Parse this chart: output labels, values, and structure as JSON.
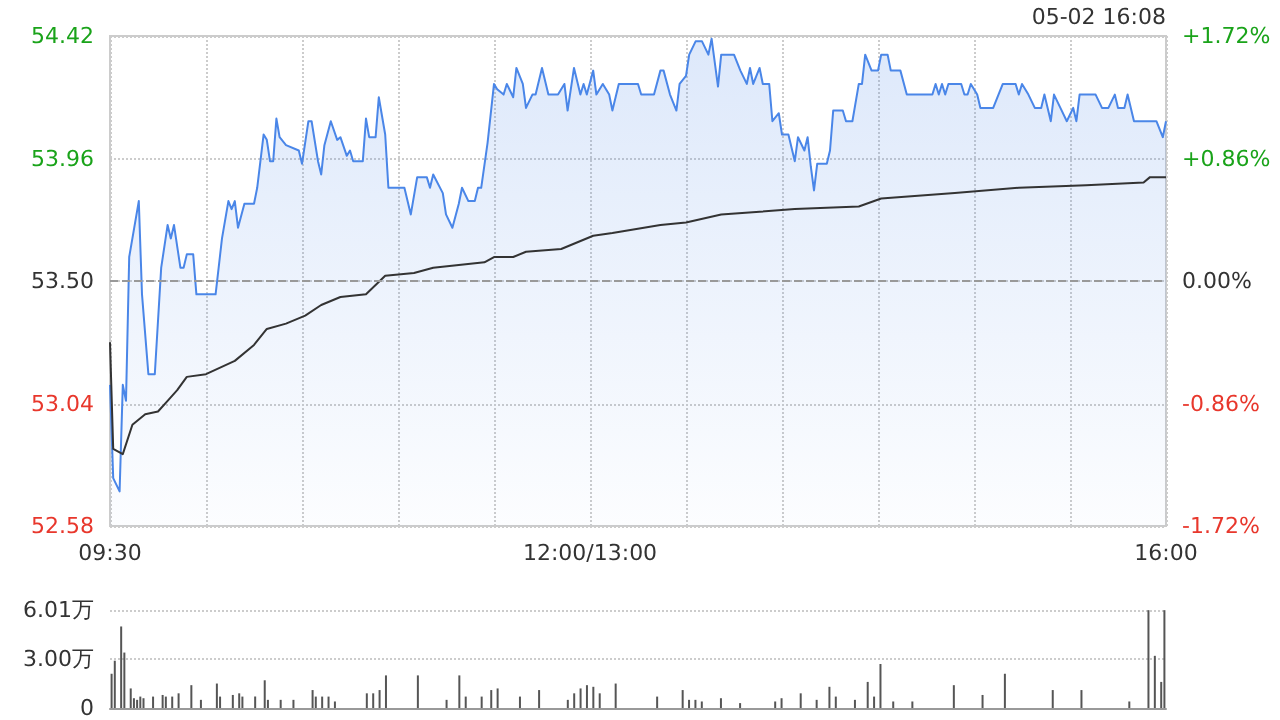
{
  "chart_data": [
    {
      "type": "area",
      "annotations": [
        "05-02 16:08"
      ],
      "categories": [
        "09:30",
        null,
        null,
        null,
        null,
        null,
        null,
        null,
        null,
        null,
        null,
        null,
        null,
        null,
        null,
        null,
        null,
        null,
        null,
        null,
        null,
        null,
        null,
        null,
        null,
        null,
        null,
        null,
        null,
        null,
        null,
        null,
        null,
        null,
        null,
        null,
        null,
        null,
        null,
        null,
        null,
        null,
        null,
        null,
        null,
        null,
        null,
        null,
        null,
        null,
        null,
        null,
        null,
        null,
        null,
        null,
        null,
        null,
        null,
        null,
        null,
        null,
        null,
        null,
        null,
        null,
        null,
        null,
        null,
        null,
        null,
        null,
        null,
        null,
        null,
        null,
        null,
        null,
        null,
        null,
        null,
        null,
        null,
        null,
        null,
        null,
        null,
        null,
        null,
        null,
        null,
        null,
        null,
        null,
        null,
        null,
        null,
        null,
        null,
        null,
        null,
        null,
        null,
        null,
        null,
        null,
        null,
        null,
        null,
        null,
        null,
        null,
        null,
        null,
        null,
        null,
        null,
        null,
        null,
        null,
        null,
        null,
        null,
        null,
        null,
        null,
        null,
        null,
        null,
        null,
        null,
        null,
        null,
        null,
        null,
        null,
        null,
        null,
        null,
        null,
        null,
        null,
        null,
        null,
        null,
        null,
        null,
        null,
        null,
        null,
        "12:00/13:00",
        null,
        null,
        null,
        null,
        null,
        null,
        null,
        null,
        null,
        null,
        null,
        null,
        null,
        null,
        null,
        null,
        null,
        null,
        null,
        null,
        null,
        null,
        null,
        null,
        null,
        null,
        null,
        null,
        null,
        null,
        null,
        null,
        null,
        null,
        null,
        null,
        null,
        null,
        null,
        null,
        null,
        null,
        null,
        null,
        null,
        null,
        null,
        null,
        null,
        null,
        null,
        null,
        null,
        null,
        null,
        null,
        null,
        null,
        null,
        null,
        null,
        null,
        null,
        null,
        null,
        null,
        null,
        null,
        null,
        null,
        null,
        null,
        null,
        null,
        null,
        null,
        null,
        null,
        null,
        null,
        null,
        null,
        null,
        null,
        null,
        null,
        null,
        null,
        null,
        null,
        null,
        null,
        null,
        null,
        null,
        null,
        null,
        null,
        null,
        null,
        null,
        null,
        null,
        null,
        null,
        null,
        null,
        null,
        null,
        null,
        null,
        null,
        null,
        null,
        null,
        null,
        null,
        null,
        null,
        null,
        null,
        null,
        null,
        null,
        null,
        null,
        null,
        null,
        null,
        null,
        null,
        null,
        null,
        null,
        null,
        null,
        null,
        null,
        null,
        null,
        null,
        null,
        null,
        null,
        null,
        null,
        null,
        null,
        null,
        null,
        null,
        null,
        null,
        null,
        null,
        null,
        null,
        null,
        null,
        null,
        null,
        null,
        null,
        null,
        null,
        null,
        null,
        null,
        null,
        null,
        null,
        null,
        null,
        null,
        null,
        null,
        null,
        null,
        null,
        "16:00"
      ],
      "ylim": [
        52.58,
        54.42
      ],
      "yticks": [
        52.58,
        53.04,
        {
          "value": 53.5,
          "label": "53.50"
        },
        53.96,
        54.42
      ],
      "y2lim": [
        -1.72,
        1.72
      ],
      "y2ticks": [
        {
          "value": -1.72,
          "label": "-1.72%"
        },
        {
          "value": -0.86,
          "label": "-0.86%"
        },
        {
          "value": 0,
          "label": "0.00%"
        },
        {
          "value": 0.86,
          "label": "+0.86%"
        },
        {
          "value": 1.72,
          "label": "+1.72%"
        }
      ],
      "grid": true,
      "marker": "none",
      "line_style": "solid",
      "ref_lines": [
        {
          "axis": "y",
          "value": 53.5,
          "color": "#999999",
          "line_style": "dashed"
        }
      ],
      "series": [
        {
          "color": "#4a86e8",
          "values": [
            53.11,
            52.76,
            null,
            52.71,
            53.11,
            53.05,
            53.59,
            null,
            null,
            53.8,
            53.45,
            null,
            53.15,
            null,
            53.15,
            null,
            53.55,
            null,
            53.71,
            53.66,
            53.71,
            null,
            53.55,
            53.55,
            53.6,
            null,
            53.6,
            53.45,
            null,
            null,
            null,
            null,
            null,
            53.45,
            null,
            53.66,
            null,
            53.8,
            53.77,
            53.8,
            53.7,
            null,
            53.79,
            null,
            null,
            53.79,
            53.85,
            null,
            54.05,
            54.03,
            53.95,
            53.95,
            54.11,
            54.04,
            null,
            54.01,
            null,
            null,
            null,
            53.99,
            53.94,
            null,
            54.1,
            54.1,
            null,
            53.95,
            53.9,
            54.01,
            null,
            54.1,
            null,
            54.03,
            54.04,
            null,
            53.97,
            53.99,
            53.95,
            null,
            null,
            53.95,
            54.11,
            54.04,
            null,
            54.04,
            54.19,
            null,
            54.05,
            53.85,
            null,
            null,
            null,
            null,
            53.85,
            null,
            53.75,
            null,
            53.89,
            null,
            null,
            53.89,
            53.85,
            53.9,
            null,
            null,
            53.83,
            53.75,
            null,
            53.7,
            null,
            53.79,
            53.85,
            null,
            53.8,
            null,
            53.8,
            53.85,
            53.85,
            null,
            54.02,
            null,
            54.24,
            54.22,
            null,
            54.2,
            54.24,
            null,
            54.19,
            54.3,
            null,
            54.24,
            54.15,
            null,
            54.2,
            54.2,
            null,
            54.3,
            null,
            54.2,
            null,
            null,
            54.2,
            null,
            54.24,
            54.14,
            null,
            54.3,
            null,
            54.2,
            54.24,
            54.2,
            null,
            54.29,
            54.2,
            null,
            54.24,
            null,
            54.2,
            54.14,
            null,
            54.24,
            null,
            54.24,
            null,
            null,
            null,
            54.24,
            54.2,
            null,
            null,
            null,
            54.2,
            null,
            54.29,
            54.29,
            null,
            54.2,
            null,
            54.14,
            54.24,
            null,
            54.27,
            54.35,
            null,
            54.4,
            null,
            54.4,
            null,
            54.35,
            54.41,
            null,
            54.23,
            54.35,
            null,
            null,
            null,
            54.35,
            null,
            54.29,
            null,
            54.24,
            54.3,
            54.24,
            null,
            54.3,
            54.24,
            null,
            54.24,
            54.1,
            null,
            54.13,
            54.05,
            null,
            54.05,
            null,
            53.95,
            54.04,
            null,
            53.99,
            54.04,
            53.93,
            53.84,
            53.94,
            null,
            null,
            53.94,
            53.99,
            54.14,
            null,
            null,
            54.14,
            54.1,
            null,
            54.1,
            null,
            54.24,
            54.24,
            54.35,
            null,
            54.29,
            null,
            54.29,
            54.35,
            null,
            54.35,
            54.29,
            null,
            null,
            54.29,
            null,
            54.2,
            null,
            null,
            null,
            null,
            null,
            null,
            null,
            54.2,
            54.24,
            54.2,
            54.24,
            54.2,
            54.24,
            null,
            null,
            null,
            54.24,
            54.2,
            54.2,
            54.24,
            null,
            54.2,
            54.15,
            null,
            null,
            null,
            54.15,
            null,
            null,
            54.24,
            null,
            null,
            null,
            54.24,
            54.2,
            54.24,
            null,
            54.2,
            null,
            54.15,
            null,
            54.15,
            54.2,
            null,
            54.1,
            54.2,
            null,
            54.15,
            null,
            54.1,
            null,
            54.15,
            54.1,
            54.2,
            null,
            null,
            null,
            null,
            54.2,
            null,
            54.15,
            null,
            54.15,
            null,
            54.2,
            54.15,
            null,
            54.15,
            54.2,
            null,
            54.1,
            null,
            null,
            null,
            null,
            null,
            null,
            54.1,
            null,
            54.04,
            54.1
          ]
        },
        {
          "type": "line",
          "color": "#333333",
          "values": [
            53.27,
            52.87,
            null,
            null,
            52.85,
            null,
            null,
            52.96,
            null,
            null,
            null,
            53.0,
            null,
            null,
            null,
            53.01,
            null,
            null,
            53.05,
            null,
            null,
            53.09,
            null,
            null,
            53.14,
            null,
            null,
            null,
            null,
            null,
            53.15,
            null,
            null,
            null,
            null,
            null,
            null,
            null,
            null,
            53.2,
            null,
            null,
            null,
            null,
            null,
            53.26,
            null,
            null,
            null,
            53.32,
            null,
            null,
            null,
            null,
            null,
            53.34,
            null,
            null,
            null,
            null,
            null,
            53.37,
            null,
            null,
            null,
            null,
            53.41,
            null,
            null,
            null,
            null,
            null,
            53.44,
            null,
            null,
            null,
            null,
            null,
            null,
            null,
            53.45,
            null,
            null,
            null,
            null,
            null,
            53.52,
            null,
            null,
            null,
            null,
            null,
            null,
            null,
            null,
            53.53,
            null,
            null,
            null,
            null,
            null,
            53.55,
            null,
            null,
            null,
            null,
            null,
            null,
            null,
            53.56,
            null,
            null,
            null,
            null,
            null,
            null,
            null,
            53.57,
            null,
            null,
            53.59,
            null,
            null,
            null,
            null,
            null,
            53.59,
            null,
            null,
            null,
            53.61,
            null,
            null,
            null,
            null,
            null,
            null,
            null,
            null,
            null,
            null,
            53.62,
            null,
            null,
            null,
            null,
            null,
            null,
            null,
            null,
            null,
            53.67,
            null,
            null,
            null,
            null,
            null,
            53.68,
            null,
            null,
            null,
            null,
            null,
            null,
            null,
            null,
            null,
            null,
            null,
            null,
            null,
            null,
            53.71,
            null,
            null,
            null,
            null,
            null,
            null,
            null,
            53.72,
            null,
            null,
            null,
            null,
            null,
            null,
            null,
            null,
            null,
            null,
            53.75,
            null,
            null,
            null,
            null,
            null,
            null,
            null,
            null,
            null,
            null,
            null,
            53.76,
            null,
            null,
            null,
            null,
            null,
            null,
            null,
            null,
            null,
            null,
            53.77,
            null,
            null,
            null,
            null,
            null,
            null,
            null,
            null,
            null,
            null,
            null,
            null,
            null,
            null,
            null,
            null,
            null,
            null,
            null,
            53.78,
            null,
            null,
            null,
            null,
            null,
            null,
            53.81,
            null,
            null,
            null,
            null,
            null,
            null,
            null,
            null,
            null,
            null,
            null,
            null,
            null,
            null,
            null,
            null,
            null,
            null,
            null,
            null,
            null,
            null,
            53.83,
            null,
            null,
            null,
            null,
            null,
            null,
            null,
            null,
            null,
            null,
            null,
            null,
            null,
            null,
            null,
            null,
            null,
            null,
            null,
            53.85,
            null,
            null,
            null,
            null,
            null,
            null,
            null,
            null,
            null,
            null,
            null,
            null,
            null,
            null,
            null,
            null,
            null,
            null,
            null,
            null,
            53.86,
            null,
            null,
            null,
            null,
            null,
            null,
            null,
            null,
            null,
            null,
            null,
            null,
            null,
            null,
            null,
            null,
            null,
            53.87,
            null,
            53.89,
            null,
            null,
            null,
            null,
            53.89
          ]
        }
      ]
    },
    {
      "type": "bar",
      "color": "#555555",
      "tick_labels": "y",
      "grid": "y",
      "categories": [
        null,
        null,
        null,
        null,
        null,
        null,
        null,
        null,
        null,
        null,
        null,
        null,
        null,
        null,
        null,
        null,
        null,
        null,
        null,
        null,
        null,
        null,
        null,
        null,
        null,
        null,
        null,
        null,
        null,
        null,
        null,
        null,
        null,
        null,
        null,
        null,
        null,
        null,
        null,
        null,
        null,
        null,
        null,
        null,
        null,
        null,
        null,
        null,
        null,
        null,
        null,
        null,
        null,
        null,
        null,
        null,
        null,
        null,
        null,
        null,
        null,
        null,
        null,
        null,
        null,
        null,
        null,
        null,
        null,
        null,
        null,
        null,
        null,
        null,
        null,
        null,
        null,
        null,
        null,
        null,
        null,
        null,
        null,
        null,
        null,
        null,
        null,
        null,
        null,
        null,
        null,
        null,
        null,
        null,
        null,
        null,
        null,
        null,
        null,
        null,
        null,
        null,
        null,
        null,
        null,
        null,
        null,
        null,
        null,
        null,
        null,
        null,
        null,
        null,
        null,
        null,
        null,
        null,
        null,
        null,
        null,
        null,
        null,
        null,
        null,
        null,
        null,
        null,
        null,
        null,
        null,
        null,
        null,
        null,
        null,
        null,
        null,
        null,
        null,
        null,
        null,
        null,
        null,
        null,
        null,
        null,
        null,
        null,
        null,
        null,
        null,
        null,
        null,
        null,
        null,
        null,
        null,
        null,
        null,
        null,
        null,
        null,
        null,
        null,
        null,
        null,
        null,
        null,
        null,
        null,
        null,
        null,
        null,
        null,
        null,
        null,
        null,
        null,
        null,
        null,
        null,
        null,
        null,
        null,
        null,
        null,
        null,
        null,
        null,
        null,
        null,
        null,
        null,
        null,
        null,
        null,
        null,
        null,
        null,
        null,
        null,
        null,
        null,
        null,
        null,
        null,
        null,
        null,
        null,
        null,
        null,
        null,
        null,
        null,
        null,
        null,
        null,
        null,
        null,
        null,
        null,
        null,
        null,
        null,
        null,
        null,
        null,
        null,
        null,
        null,
        null,
        null,
        null,
        null,
        null,
        null,
        null,
        null,
        null,
        null,
        null,
        null,
        null,
        null,
        null,
        null,
        null,
        null,
        null,
        null,
        null,
        null,
        null,
        null,
        null,
        null,
        null,
        null,
        null,
        null,
        null,
        null,
        null,
        null,
        null,
        null,
        null,
        null,
        null,
        null,
        null,
        null,
        null,
        null,
        null,
        null,
        null,
        null,
        null,
        null,
        null,
        null,
        null,
        null,
        null,
        null,
        null,
        null,
        null,
        null,
        null,
        null,
        null,
        null,
        null,
        null,
        null,
        null,
        null,
        null,
        null,
        null,
        null,
        null,
        null,
        null,
        null,
        null,
        null,
        null,
        null,
        null,
        null,
        null,
        null,
        null,
        null,
        null,
        null,
        null,
        null,
        null,
        null,
        null,
        null,
        null,
        null,
        null,
        null,
        null,
        null
      ],
      "ylim": [
        0,
        6.01
      ],
      "yticks": [
        0,
        {
          "value": 3,
          "label": "3.00万"
        },
        {
          "value": 6.01,
          "label": "6.01万"
        }
      ],
      "values": [
        2.1,
        2.9,
        null,
        5.0,
        3.4,
        null,
        1.2,
        0.6,
        0.5,
        0.7,
        0.6,
        null,
        null,
        0.7,
        null,
        null,
        0.8,
        0.7,
        null,
        0.7,
        null,
        0.9,
        null,
        null,
        null,
        1.4,
        null,
        null,
        0.5,
        null,
        null,
        null,
        null,
        1.5,
        0.7,
        null,
        null,
        null,
        0.8,
        null,
        0.9,
        0.7,
        null,
        null,
        null,
        0.7,
        null,
        null,
        1.7,
        0.5,
        null,
        null,
        null,
        0.5,
        null,
        null,
        null,
        0.5,
        null,
        null,
        null,
        null,
        null,
        1.1,
        0.7,
        null,
        0.7,
        null,
        0.7,
        null,
        0.4,
        null,
        null,
        null,
        null,
        null,
        null,
        null,
        null,
        null,
        0.9,
        null,
        0.9,
        null,
        1.1,
        null,
        2.0,
        null,
        null,
        null,
        null,
        null,
        null,
        null,
        null,
        null,
        2.0,
        null,
        null,
        null,
        null,
        null,
        null,
        null,
        null,
        0.5,
        null,
        null,
        null,
        2.0,
        null,
        0.7,
        null,
        null,
        null,
        null,
        0.7,
        null,
        null,
        1.1,
        null,
        1.2,
        null,
        null,
        null,
        null,
        null,
        null,
        0.7,
        null,
        null,
        null,
        null,
        null,
        1.1,
        null,
        null,
        null,
        null,
        null,
        null,
        null,
        null,
        0.5,
        null,
        0.9,
        null,
        1.2,
        null,
        1.4,
        null,
        1.3,
        null,
        0.9,
        null,
        null,
        null,
        null,
        1.5,
        null,
        null,
        null,
        null,
        null,
        null,
        null,
        null,
        null,
        null,
        null,
        null,
        0.7,
        null,
        null,
        null,
        null,
        null,
        null,
        null,
        1.1,
        null,
        0.5,
        null,
        0.5,
        null,
        0.4,
        null,
        null,
        null,
        null,
        null,
        0.6,
        null,
        null,
        null,
        null,
        null,
        0.3,
        null,
        null,
        null,
        null,
        null,
        null,
        null,
        null,
        null,
        null,
        0.4,
        null,
        0.6,
        null,
        null,
        null,
        null,
        null,
        0.9,
        null,
        null,
        null,
        null,
        0.5,
        null,
        null,
        null,
        1.3,
        null,
        0.7,
        null,
        null,
        null,
        null,
        null,
        0.5,
        null,
        null,
        null,
        1.6,
        null,
        0.7,
        null,
        2.7,
        null,
        null,
        null,
        0.4,
        null,
        null,
        null,
        null,
        null,
        0.4,
        null,
        null,
        null,
        null,
        null,
        null,
        null,
        null,
        null,
        null,
        null,
        null,
        1.4,
        null,
        null,
        null,
        null,
        null,
        null,
        null,
        null,
        0.8,
        null,
        null,
        null,
        null,
        null,
        null,
        2.1,
        null,
        null,
        null,
        null,
        null,
        null,
        null,
        null,
        null,
        null,
        null,
        null,
        null,
        null,
        1.1,
        null,
        null,
        null,
        null,
        null,
        null,
        null,
        null,
        1.1,
        null,
        null,
        null,
        null,
        null,
        null,
        null,
        null,
        null,
        null,
        null,
        null,
        null,
        null,
        0.4,
        null,
        null,
        null,
        null,
        null,
        6.0,
        null,
        3.2,
        null,
        1.6,
        6.0
      ]
    }
  ]
}
